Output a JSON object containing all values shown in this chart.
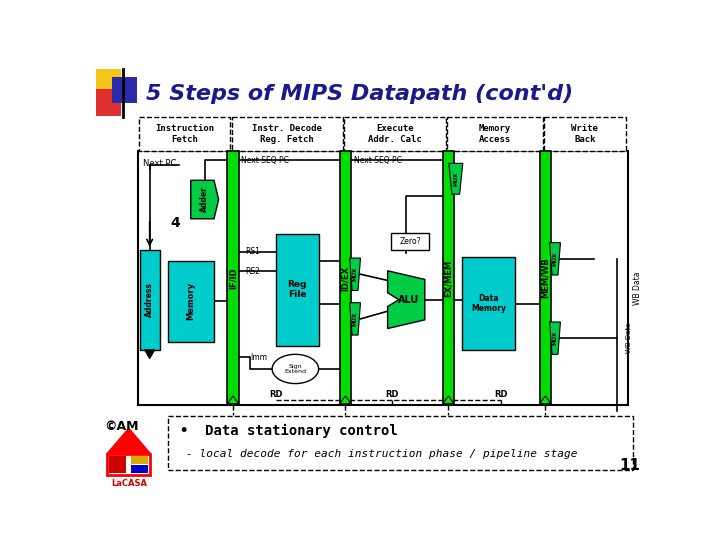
{
  "title": "5 Steps of MIPS Datapath (cont'd)",
  "title_color": "#1a1a8c",
  "title_fontsize": 16,
  "bg_color": "#ffffff",
  "stage_labels": [
    "Instruction\nFetch",
    "Instr. Decode\nReg. Fetch",
    "Execute\nAddr. Calc",
    "Memory\nAccess",
    "Write\nBack"
  ],
  "pipeline_reg_labels": [
    "IF/ID",
    "ID/EX",
    "EX/MEM",
    "MEM/WB"
  ],
  "green_bar": "#00dd00",
  "cyan_box": "#00cccc",
  "mux_color": "#00cc44",
  "adder_color": "#00cc44",
  "note_text1": "Data stationary control",
  "note_text2": "- local decode for each instruction phase / pipeline stage",
  "page_num": "11",
  "logo_yellow": "#f5c518",
  "logo_red": "#e03030",
  "logo_blue": "#2a2aaa",
  "lacasa_red": "#cc0000",
  "lacasa_gold": "#ddaa00",
  "lacasa_blue": "#0000cc"
}
